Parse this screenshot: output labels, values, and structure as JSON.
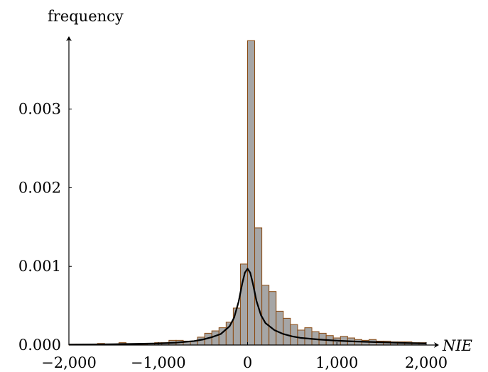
{
  "chart_data": {
    "type": "bar",
    "xlabel": "NIE",
    "ylabel": "frequency",
    "xlim": [
      -2000,
      2000
    ],
    "ylim": [
      0,
      0.0039
    ],
    "grid": false,
    "legend": "none",
    "bin_width": 80,
    "x_ticks": [
      -2000,
      -1000,
      0,
      1000,
      2000
    ],
    "x_tick_labels": [
      "−2,000",
      "−1,000",
      "0",
      "1,000",
      "2,000"
    ],
    "y_ticks": [
      0,
      0.001,
      0.002,
      0.003
    ],
    "y_tick_labels": [
      "0.000",
      "0.001",
      "0.002",
      "0.003"
    ],
    "colors": {
      "bar_fill": "#a6a6a6",
      "bar_stroke": "#8a4a12",
      "line": "#000000"
    },
    "series": [
      {
        "type": "bar",
        "bins": [
          {
            "x0": -2000,
            "value": 1e-05
          },
          {
            "x0": -1920,
            "value": 1e-05
          },
          {
            "x0": -1840,
            "value": 1e-05
          },
          {
            "x0": -1760,
            "value": 1e-05
          },
          {
            "x0": -1680,
            "value": 2e-05
          },
          {
            "x0": -1600,
            "value": 1e-05
          },
          {
            "x0": -1520,
            "value": 1e-05
          },
          {
            "x0": -1440,
            "value": 3e-05
          },
          {
            "x0": -1360,
            "value": 1e-05
          },
          {
            "x0": -1280,
            "value": 1e-05
          },
          {
            "x0": -1200,
            "value": 1e-05
          },
          {
            "x0": -1120,
            "value": 2e-05
          },
          {
            "x0": -1040,
            "value": 3e-05
          },
          {
            "x0": -960,
            "value": 3e-05
          },
          {
            "x0": -880,
            "value": 6e-05
          },
          {
            "x0": -800,
            "value": 6e-05
          },
          {
            "x0": -720,
            "value": 5e-05
          },
          {
            "x0": -640,
            "value": 5e-05
          },
          {
            "x0": -560,
            "value": 0.0001
          },
          {
            "x0": -480,
            "value": 0.00015
          },
          {
            "x0": -400,
            "value": 0.00018
          },
          {
            "x0": -320,
            "value": 0.00022
          },
          {
            "x0": -240,
            "value": 0.00029
          },
          {
            "x0": -160,
            "value": 0.00047
          },
          {
            "x0": -80,
            "value": 0.00103
          },
          {
            "x0": 0,
            "value": 0.00387
          },
          {
            "x0": 80,
            "value": 0.00149
          },
          {
            "x0": 160,
            "value": 0.00076
          },
          {
            "x0": 240,
            "value": 0.00068
          },
          {
            "x0": 320,
            "value": 0.00043
          },
          {
            "x0": 400,
            "value": 0.00034
          },
          {
            "x0": 480,
            "value": 0.00026
          },
          {
            "x0": 560,
            "value": 0.00019
          },
          {
            "x0": 640,
            "value": 0.00022
          },
          {
            "x0": 720,
            "value": 0.00017
          },
          {
            "x0": 800,
            "value": 0.00015
          },
          {
            "x0": 880,
            "value": 0.00012
          },
          {
            "x0": 960,
            "value": 9e-05
          },
          {
            "x0": 1040,
            "value": 0.00011
          },
          {
            "x0": 1120,
            "value": 9e-05
          },
          {
            "x0": 1200,
            "value": 7e-05
          },
          {
            "x0": 1280,
            "value": 6e-05
          },
          {
            "x0": 1360,
            "value": 7e-05
          },
          {
            "x0": 1440,
            "value": 5e-05
          },
          {
            "x0": 1520,
            "value": 5e-05
          },
          {
            "x0": 1600,
            "value": 4e-05
          },
          {
            "x0": 1680,
            "value": 4e-05
          },
          {
            "x0": 1760,
            "value": 4e-05
          },
          {
            "x0": 1840,
            "value": 3e-05
          },
          {
            "x0": 1920,
            "value": 3e-05
          }
        ]
      },
      {
        "type": "line",
        "x": [
          -2000,
          -1500,
          -1000,
          -800,
          -600,
          -500,
          -400,
          -300,
          -200,
          -150,
          -100,
          -60,
          -30,
          0,
          30,
          60,
          100,
          150,
          200,
          300,
          400,
          500,
          600,
          800,
          1000,
          1200,
          1500,
          1800,
          2000
        ],
        "y": [
          5e-06,
          1e-05,
          2e-05,
          3e-05,
          5e-05,
          7e-05,
          0.0001,
          0.00014,
          0.00024,
          0.00035,
          0.00055,
          0.00078,
          0.00092,
          0.00097,
          0.00092,
          0.00078,
          0.00056,
          0.00038,
          0.00028,
          0.00019,
          0.00014,
          0.00011,
          9e-05,
          7e-05,
          5.5e-05,
          4.5e-05,
          3.5e-05,
          2.5e-05,
          2e-05
        ]
      }
    ]
  }
}
